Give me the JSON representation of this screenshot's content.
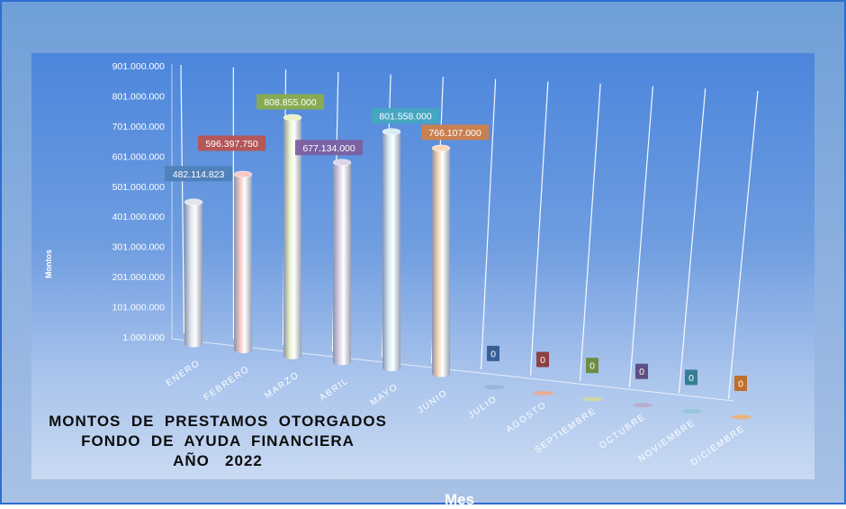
{
  "chart_data": {
    "type": "bar",
    "title_lines": [
      "MONTOS  DE  PRESTAMOS  OTORGADOS",
      "FONDO  DE  AYUDA  FINANCIERA",
      "AÑO   2022"
    ],
    "xlabel": "Mes",
    "ylabel": "Montos",
    "categories": [
      "ENERO",
      "FEBRERO",
      "MARZO",
      "ABRIL",
      "MAYO",
      "JUNIO",
      "JULIO",
      "AGOSTO",
      "SEPTIEMBRE",
      "OCTUBRE",
      "NOVIEMBRE",
      "DICIEMBRE"
    ],
    "values": [
      482114823,
      596397750,
      808855000,
      677134000,
      801558000,
      766107000,
      0,
      0,
      0,
      0,
      0,
      0
    ],
    "value_labels": [
      "482.114.823",
      "596.397.750",
      "808.855.000",
      "677.134.000",
      "801.558.000",
      "766.107.000",
      "0",
      "0",
      "0",
      "0",
      "0",
      "0"
    ],
    "y_ticks": [
      "1.000.000",
      "101.000.000",
      "201.000.000",
      "301.000.000",
      "401.000.000",
      "501.000.000",
      "601.000.000",
      "701.000.000",
      "801.000.000",
      "901.000.000"
    ],
    "ylim": [
      1000000,
      901000000
    ],
    "grid": true,
    "legend": "none",
    "bar_colors": [
      "#dfe6ef",
      "#f7c9c7",
      "#e9f1c8",
      "#ddd4e8",
      "#d8eef4",
      "#fbd9bc",
      "#9ab3d9",
      "#f0a890",
      "#d0d8a0",
      "#b8a8cc",
      "#90c8d8",
      "#f0b070"
    ],
    "label_colors": [
      "#4f7fb8",
      "#b85450",
      "#8aac4a",
      "#7b60a0",
      "#45a8c0",
      "#d08048",
      "#2f5a90",
      "#8a3a3a",
      "#6a8a3a",
      "#5a4a7a",
      "#2f7a90",
      "#c06a20"
    ]
  }
}
